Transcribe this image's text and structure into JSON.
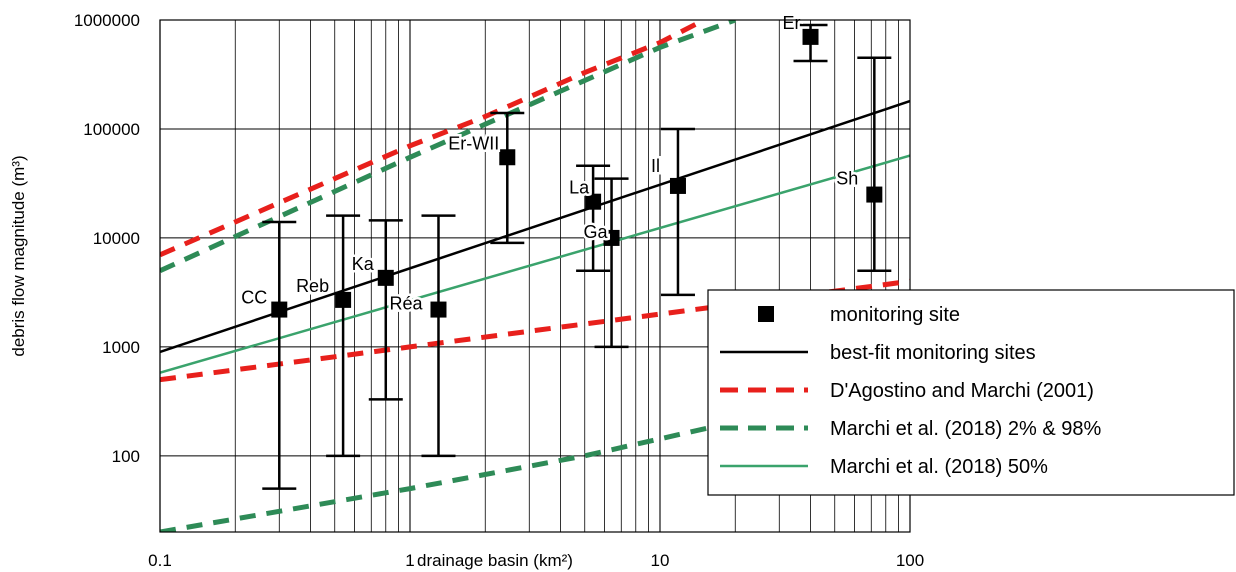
{
  "chart_data": {
    "type": "scatter",
    "x_scale": "log",
    "y_scale": "log",
    "xlim": [
      0.1,
      100
    ],
    "ylim": [
      20,
      1000000
    ],
    "grid": true,
    "xlabel": "drainage basin (km²)",
    "ylabel": "debris flow magnitude (m³)",
    "x_ticks": [
      "0.1",
      "1",
      "10",
      "100"
    ],
    "y_ticks": [
      "100",
      "1000",
      "10000",
      "100000",
      "1000000"
    ],
    "legend_position": "bottom-right",
    "colors": {
      "black": "#000000",
      "red": "#e8201c",
      "green_dashed": "#2e8b57",
      "green_solid": "#3aa36c"
    },
    "sites": [
      {
        "label": "CC",
        "x": 0.3,
        "y": 2200,
        "err_low": 50,
        "err_high": 14000
      },
      {
        "label": "Reb",
        "x": 0.54,
        "y": 2700,
        "err_low": 100,
        "err_high": 16000
      },
      {
        "label": "Ka",
        "x": 0.8,
        "y": 4300,
        "err_low": 330,
        "err_high": 14500
      },
      {
        "label": "Réa",
        "x": 1.3,
        "y": 2200,
        "err_low": 100,
        "err_high": 16000
      },
      {
        "label": "Er-WII",
        "x": 2.45,
        "y": 55000,
        "err_low": 9000,
        "err_high": 140000
      },
      {
        "label": "La",
        "x": 5.4,
        "y": 21500,
        "err_low": 5000,
        "err_high": 46000
      },
      {
        "label": "Ga",
        "x": 6.4,
        "y": 10000,
        "err_low": 1000,
        "err_high": 35000
      },
      {
        "label": "Il",
        "x": 11.8,
        "y": 30000,
        "err_low": 3000,
        "err_high": 100000
      },
      {
        "label": "Er",
        "x": 40,
        "y": 700000,
        "err_low": 420000,
        "err_high": 900000
      },
      {
        "label": "Sh",
        "x": 72,
        "y": 25000,
        "err_low": 5000,
        "err_high": 450000
      }
    ],
    "series": [
      {
        "name": "monitoring site",
        "style": "marker",
        "color": "#000000"
      },
      {
        "name": "best-fit monitoring sites",
        "style": "solid",
        "color": "#000000",
        "points": [
          [
            0.1,
            900
          ],
          [
            100,
            180000
          ]
        ]
      },
      {
        "name": "D'Agostino and Marchi (2001)",
        "style": "dashed",
        "color": "#e8201c",
        "lines": [
          [
            [
              0.1,
              7000
            ],
            [
              0.5,
              35000
            ],
            [
              1,
              70000
            ],
            [
              2,
              130000
            ],
            [
              5,
              330000
            ],
            [
              10,
              620000
            ],
            [
              15,
              1000000
            ]
          ],
          [
            [
              0.1,
              500
            ],
            [
              1,
              1000
            ],
            [
              10,
              2000
            ],
            [
              100,
              4000
            ]
          ]
        ]
      },
      {
        "name": "Marchi et al. (2018) 2% & 98%",
        "style": "dashed",
        "color": "#2e8b57",
        "lines": [
          [
            [
              0.1,
              5000
            ],
            [
              1,
              55000
            ],
            [
              10,
              560000
            ],
            [
              20,
              1000000
            ]
          ],
          [
            [
              0.1,
              20
            ],
            [
              1,
              50
            ],
            [
              5,
              100
            ],
            [
              25,
              230
            ]
          ]
        ]
      },
      {
        "name": "Marchi et al. (2018) 50%",
        "style": "solid",
        "color": "#3aa36c",
        "points": [
          [
            0.1,
            580
          ],
          [
            100,
            57000
          ]
        ]
      }
    ]
  }
}
